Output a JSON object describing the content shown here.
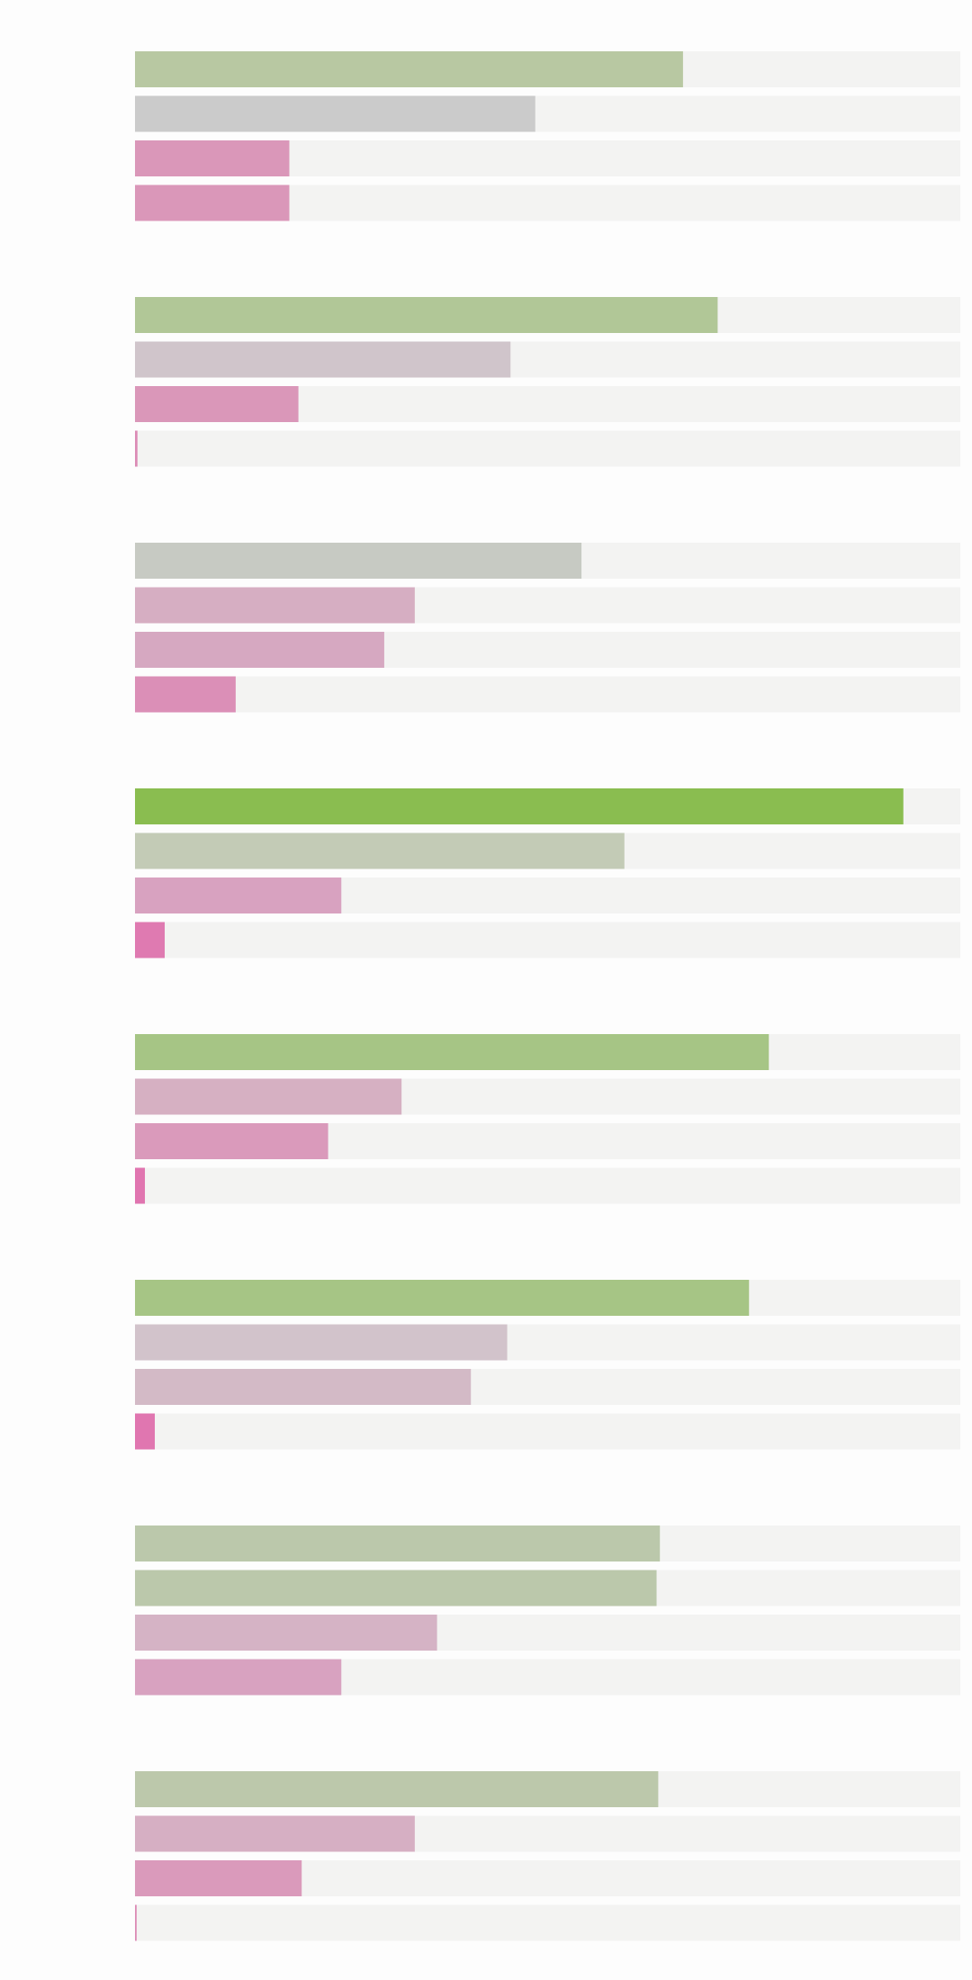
{
  "chart_data": {
    "type": "bar",
    "orientation": "horizontal",
    "title": "",
    "xlabel": "",
    "ylabel": "",
    "xlim": [
      0,
      1
    ],
    "grid": false,
    "legend": "none",
    "tick_labels_shown": false,
    "track_color": "#f3f3f2",
    "groups": [
      {
        "values": [
          0.664,
          0.485,
          0.187,
          0.187
        ],
        "colors": [
          "#b8c8a2",
          "#cbcbcb",
          "#da97b9",
          "#da97b9"
        ]
      },
      {
        "values": [
          0.706,
          0.455,
          0.198,
          0.003
        ],
        "colors": [
          "#b1c797",
          "#d0c5cb",
          "#da97b9",
          "#dc8cb6"
        ]
      },
      {
        "values": [
          0.541,
          0.339,
          0.302,
          0.122
        ],
        "colors": [
          "#c7cac3",
          "#d6aec2",
          "#d6a8c1",
          "#db8fb7"
        ]
      },
      {
        "values": [
          0.931,
          0.593,
          0.25,
          0.036
        ],
        "colors": [
          "#8abd50",
          "#c3cbb6",
          "#d8a2c0",
          "#df7ab1"
        ]
      },
      {
        "values": [
          0.768,
          0.323,
          0.234,
          0.012
        ],
        "colors": [
          "#a6c585",
          "#d6b0c2",
          "#da9abb",
          "#e075b0"
        ]
      },
      {
        "values": [
          0.744,
          0.451,
          0.407,
          0.024
        ],
        "colors": [
          "#a6c585",
          "#d2c3cb",
          "#d3bac6",
          "#e076b0"
        ]
      },
      {
        "values": [
          0.636,
          0.632,
          0.366,
          0.25
        ],
        "colors": [
          "#bbc8ab",
          "#bbc8ab",
          "#d5b3c5",
          "#d8a2c0"
        ]
      },
      {
        "values": [
          0.634,
          0.339,
          0.202,
          0.002
        ],
        "colors": [
          "#bcc8ab",
          "#d6afc3",
          "#da9abb",
          "#dc8cb6"
        ]
      }
    ]
  }
}
